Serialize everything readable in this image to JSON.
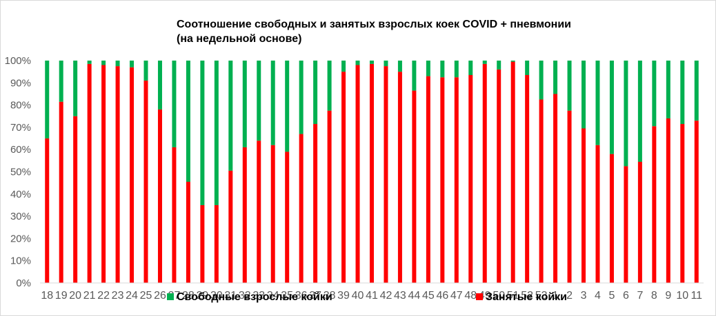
{
  "chart_data": {
    "type": "bar",
    "stacked": true,
    "percent": true,
    "title_line1": "Соотношение свободных и занятых взрослых коек COVID + пневмонии",
    "title_line2": "(на недельной основе)",
    "xlabel": "",
    "ylabel": "",
    "ylim": [
      0,
      100
    ],
    "grid": false,
    "legend_position": "bottom",
    "yticks": [
      "0%",
      "10%",
      "20%",
      "30%",
      "40%",
      "50%",
      "60%",
      "70%",
      "80%",
      "90%",
      "100%"
    ],
    "categories": [
      "18",
      "19",
      "20",
      "21",
      "22",
      "23",
      "24",
      "25",
      "26",
      "27",
      "28",
      "29",
      "30",
      "31",
      "32",
      "33",
      "34",
      "35",
      "36",
      "37",
      "38",
      "39",
      "40",
      "41",
      "42",
      "43",
      "44",
      "45",
      "46",
      "47",
      "48",
      "49",
      "50",
      "51",
      "52",
      "53",
      "1",
      "2",
      "3",
      "4",
      "5",
      "6",
      "7",
      "8",
      "9",
      "10",
      "11"
    ],
    "series": [
      {
        "name": "Занятые койки",
        "color": "#ff0000",
        "values": [
          65,
          81.5,
          75,
          98.5,
          98,
          97.5,
          97,
          91,
          78,
          61,
          45.5,
          35,
          35,
          50.5,
          61,
          64,
          62,
          59,
          67,
          71.5,
          77.5,
          95,
          98,
          98.5,
          97.5,
          95,
          86.5,
          93,
          92.5,
          92.5,
          93.5,
          98.5,
          96,
          99.5,
          93.5,
          82.5,
          85,
          77.5,
          69.5,
          62,
          58,
          52.5,
          54.5,
          70.5,
          74,
          71.5,
          73
        ]
      },
      {
        "name": "Свободные взрослые койки",
        "color": "#00b050",
        "values": [
          35,
          18.5,
          25,
          1.5,
          2,
          2.5,
          3,
          9,
          22,
          39,
          54.5,
          65,
          65,
          49.5,
          39,
          36,
          38,
          41,
          33,
          28.5,
          22.5,
          5,
          2,
          1.5,
          2.5,
          5,
          13.5,
          7,
          7.5,
          7.5,
          6.5,
          1.5,
          4,
          0.5,
          6.5,
          17.5,
          15,
          22.5,
          30.5,
          38,
          42,
          47.5,
          45.5,
          29.5,
          26,
          28.5,
          27
        ]
      }
    ],
    "legend": [
      {
        "label": "Свободные взрослые койки",
        "color": "#00b050"
      },
      {
        "label": "Занятые койки",
        "color": "#ff0000"
      }
    ]
  }
}
